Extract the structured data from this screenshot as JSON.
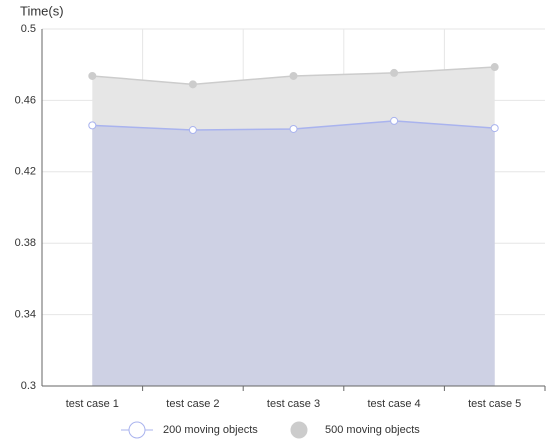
{
  "chart_data": {
    "type": "area",
    "title": "Time(s)",
    "categories": [
      "test case 1",
      "test case 2",
      "test case 3",
      "test case 4",
      "test case 5"
    ],
    "series": [
      {
        "name": "500 moving objects",
        "color": "#cccccc",
        "values": [
          0.4737,
          0.469,
          0.4737,
          0.4754,
          0.4787
        ]
      },
      {
        "name": "200 moving objects",
        "color": "#a9b3ee",
        "values": [
          0.446,
          0.4434,
          0.444,
          0.4485,
          0.4445
        ]
      }
    ],
    "ylim": [
      0.3,
      0.5
    ],
    "yticks": [
      0.3,
      0.34,
      0.38,
      0.42,
      0.46,
      0.5
    ],
    "grid": true
  }
}
